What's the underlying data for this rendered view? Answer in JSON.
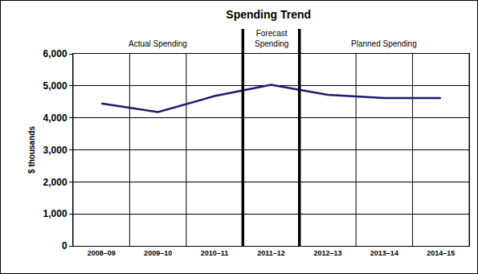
{
  "chart_data": {
    "type": "line",
    "title": "Spending Trend",
    "y_label": "$ thousands",
    "categories": [
      "2008–09",
      "2009–10",
      "2010–11",
      "2011–12",
      "2012–13",
      "2013–14",
      "2014–15"
    ],
    "values": [
      4450,
      4180,
      4680,
      5030,
      4720,
      4620,
      4620
    ],
    "color": "#1a1a6e",
    "ylim": [
      0,
      6000
    ],
    "yticks": [
      0,
      {
        "value": 1000,
        "label": "1,000"
      },
      {
        "value": 2000,
        "label": "2,000"
      },
      {
        "value": 3000,
        "label": "3,000"
      },
      {
        "value": 4000,
        "label": "4,000"
      },
      {
        "value": 5000,
        "label": "5,000"
      },
      {
        "value": 6000,
        "label": "6,000"
      }
    ],
    "grid": true,
    "annotations": [
      {
        "text": "Actual Spending",
        "categories": [
          "2008–09",
          "2009–10",
          "2010–11"
        ]
      },
      {
        "text": "Forecast\nSpending",
        "categories": [
          "2011–12"
        ]
      },
      {
        "text": "Planned Spending",
        "categories": [
          "2012–13",
          "2013–14",
          "2014–15"
        ]
      }
    ]
  }
}
